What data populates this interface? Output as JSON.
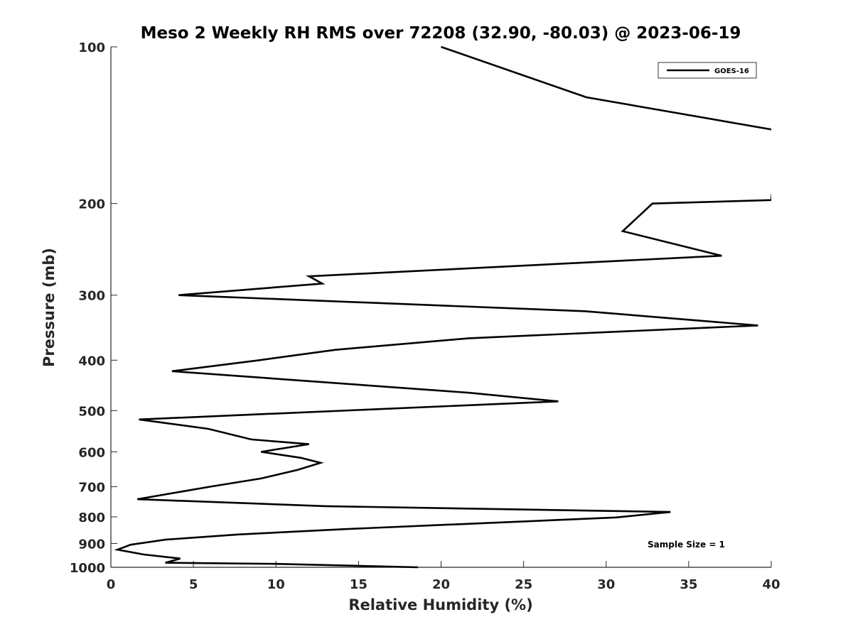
{
  "chart_data": {
    "type": "line",
    "title": "Meso 2 Weekly RH RMS over 72208 (32.90, -80.03) @ 2023-06-19",
    "xlabel": "Relative Humidity (%)",
    "ylabel": "Pressure (mb)",
    "xlim": [
      0,
      40
    ],
    "ylim": [
      1000,
      100
    ],
    "y_scale": "log",
    "y_reversed": true,
    "grid": false,
    "legend_position": "top-right",
    "xticks": [
      0,
      5,
      10,
      15,
      20,
      25,
      30,
      35,
      40
    ],
    "yticks": [
      100,
      200,
      300,
      400,
      500,
      600,
      700,
      800,
      900,
      1000
    ],
    "xtick_labels": [
      "0",
      "5",
      "10",
      "15",
      "20",
      "25",
      "30",
      "35",
      "40"
    ],
    "ytick_labels": [
      "100",
      "200",
      "300",
      "400",
      "500",
      "600",
      "700",
      "800",
      "900",
      "1000"
    ],
    "annotation": "Sample Size = 1",
    "series": [
      {
        "name": "GOES-16",
        "color": "#000000",
        "points": [
          [
            20.0,
            100
          ],
          [
            28.8,
            125
          ],
          [
            40.5,
            145
          ],
          [
            40.0,
            197
          ],
          [
            32.8,
            200
          ],
          [
            31.0,
            226
          ],
          [
            37.0,
            252
          ],
          [
            12.0,
            276
          ],
          [
            12.8,
            285
          ],
          [
            4.1,
            300
          ],
          [
            28.7,
            322
          ],
          [
            39.2,
            343
          ],
          [
            21.7,
            363
          ],
          [
            13.6,
            382
          ],
          [
            9.0,
            400
          ],
          [
            3.7,
            420
          ],
          [
            21.7,
            462
          ],
          [
            27.1,
            480
          ],
          [
            1.7,
            520
          ],
          [
            5.9,
            542
          ],
          [
            8.5,
            568
          ],
          [
            12.0,
            580
          ],
          [
            9.1,
            600
          ],
          [
            11.5,
            616
          ],
          [
            12.7,
            630
          ],
          [
            11.3,
            650
          ],
          [
            9.1,
            675
          ],
          [
            6.0,
            700
          ],
          [
            1.6,
            740
          ],
          [
            13.0,
            763
          ],
          [
            33.9,
            783
          ],
          [
            30.6,
            802
          ],
          [
            14.0,
            845
          ],
          [
            7.7,
            865
          ],
          [
            3.3,
            885
          ],
          [
            1.2,
            905
          ],
          [
            0.4,
            925
          ],
          [
            2.0,
            945
          ],
          [
            4.2,
            962
          ],
          [
            3.3,
            980
          ],
          [
            10.0,
            985
          ],
          [
            18.6,
            1000
          ]
        ]
      }
    ]
  }
}
